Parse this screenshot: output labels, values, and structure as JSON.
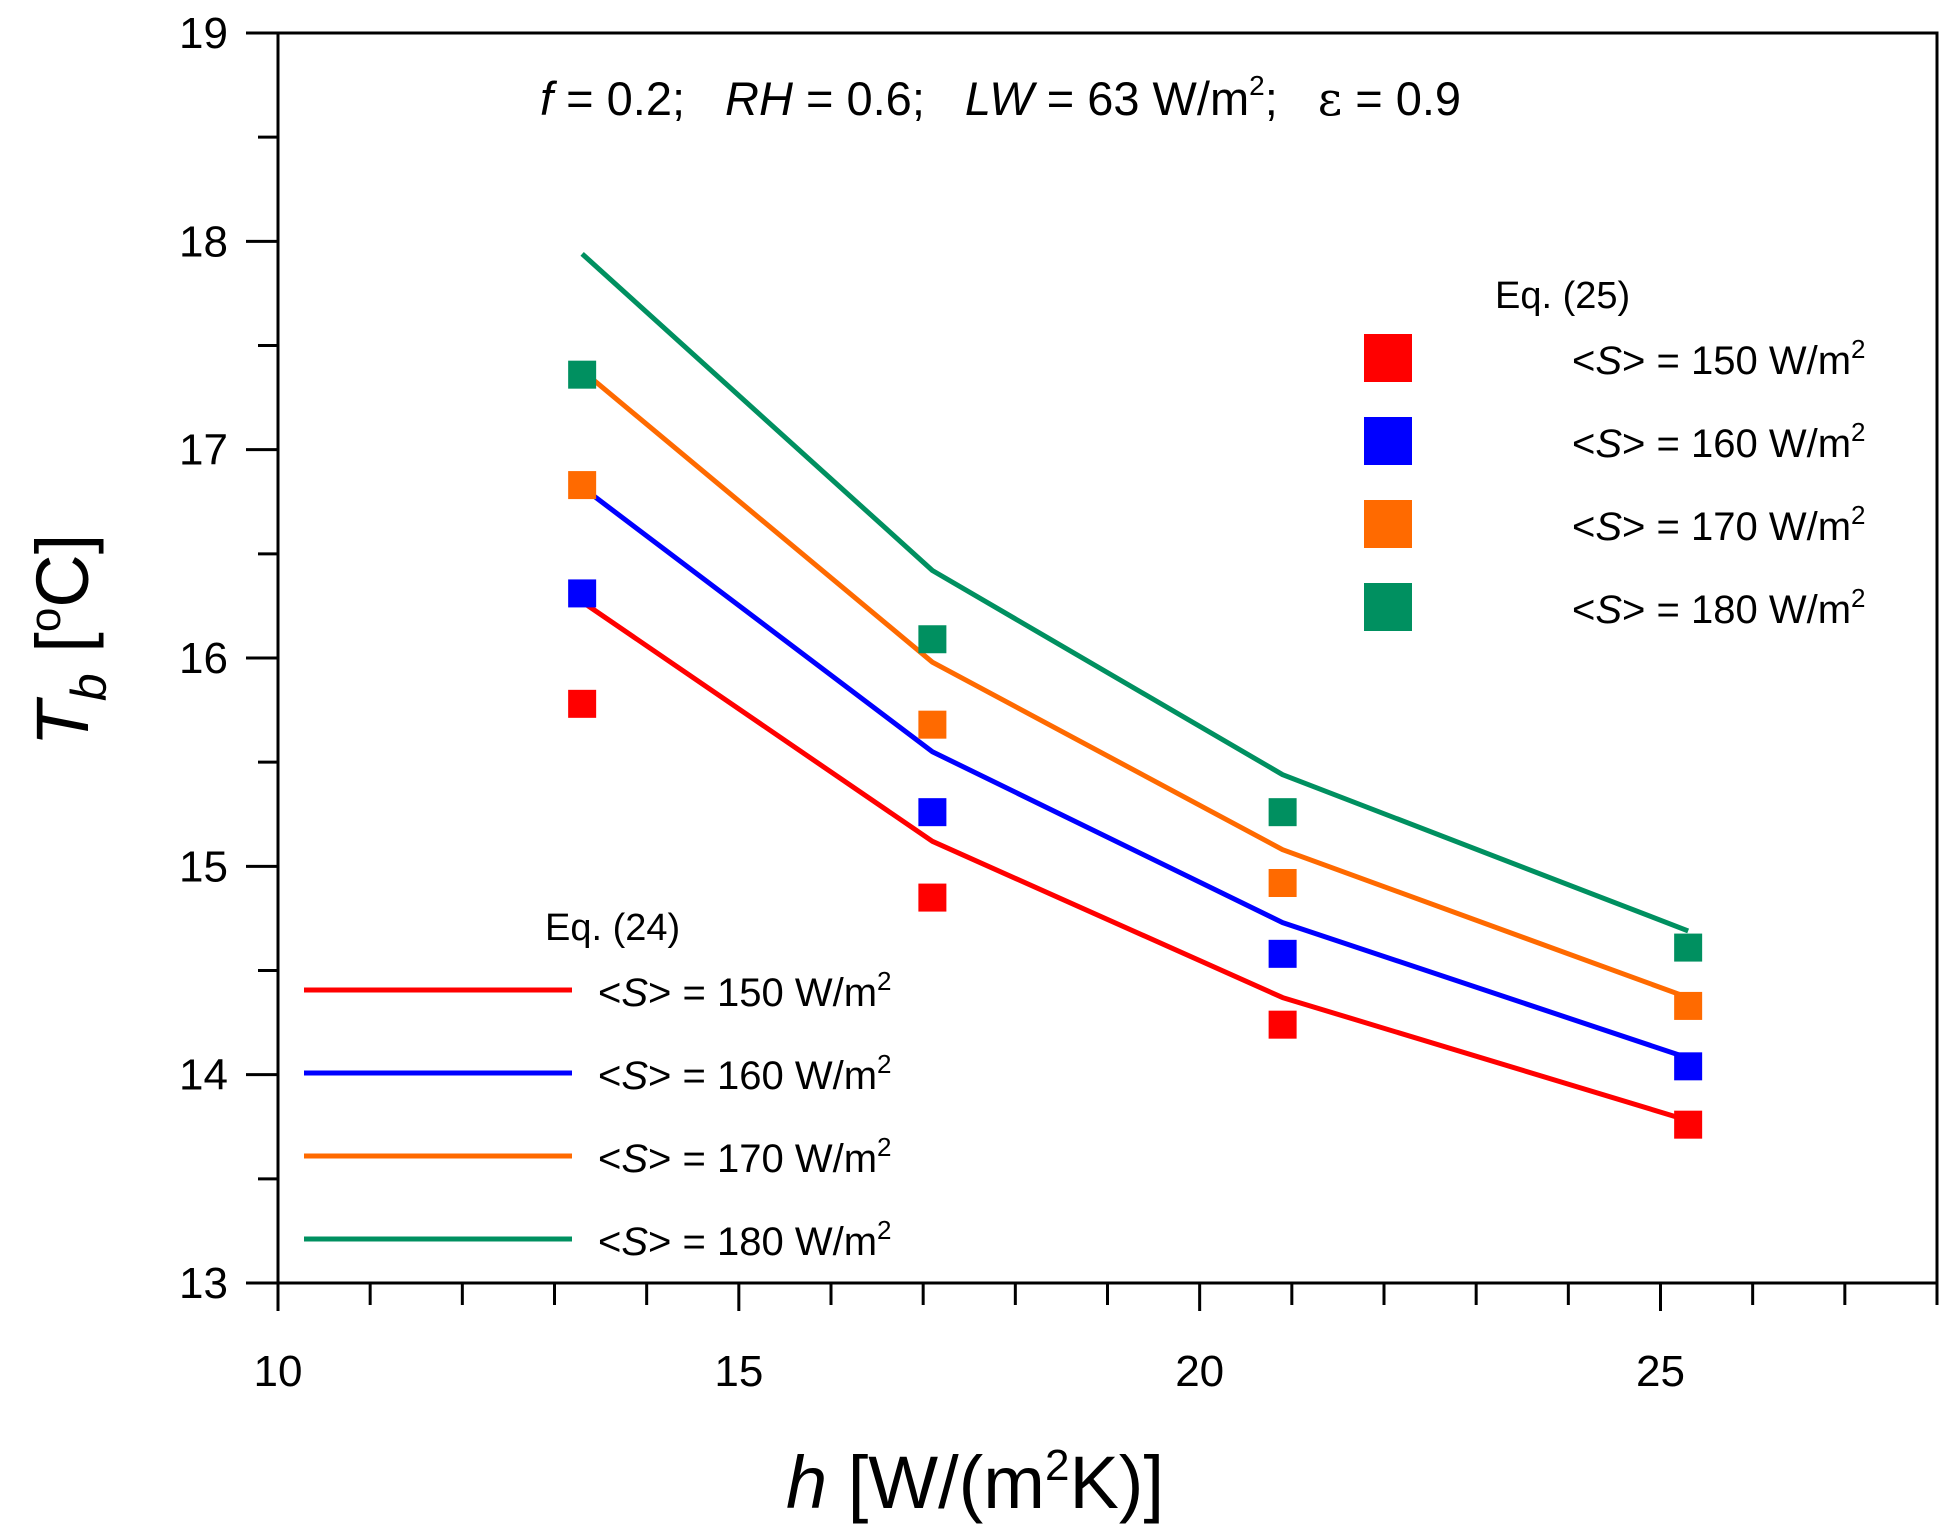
{
  "chart_data": {
    "type": "line",
    "annotation": {
      "f_symbol": "f",
      "f_value": " = 0.2;",
      "rh_symbol": "RH",
      "rh_value": " = 0.6;",
      "lw_symbol": "LW",
      "lw_value": " = 63 W/m",
      "lw_sup": "2",
      "lw_end": ";",
      "eps_symbol": "ε",
      "eps_value": " = 0.9"
    },
    "xlabel": {
      "symbol": "h",
      "unit_pre": " [W/(m",
      "unit_sup": "2",
      "unit_post": "K)]"
    },
    "ylabel": {
      "symbol": "T",
      "sub": "b",
      "unit_pre": " [",
      "unit_sup": "o",
      "unit_post": "C]"
    },
    "xlim": [
      10,
      28
    ],
    "ylim": [
      13,
      19
    ],
    "xticks": [
      10,
      15,
      20,
      25
    ],
    "yticks": [
      13,
      14,
      15,
      16,
      17,
      18,
      19
    ],
    "x": [
      13.3,
      17.1,
      20.9,
      25.3
    ],
    "lines_legend_title": "Eq. (24)",
    "markers_legend_title": "Eq. (25)",
    "series": [
      {
        "name": "<S> = 150 W/m2",
        "label_pre": "<",
        "label_sym": "S",
        "label_mid": "> = 150 W/m",
        "label_sup": "2",
        "color": "#ff0000",
        "line": [
          16.27,
          15.12,
          14.37,
          13.78
        ],
        "markers": [
          15.78,
          14.85,
          14.24,
          13.76
        ]
      },
      {
        "name": "<S> = 160 W/m2",
        "label_pre": "<",
        "label_sym": "S",
        "label_mid": "> = 160 W/m",
        "label_sup": "2",
        "color": "#0000ff",
        "line": [
          16.82,
          15.55,
          14.73,
          14.08
        ],
        "markers": [
          16.31,
          15.26,
          14.58,
          14.04
        ]
      },
      {
        "name": "<S> = 170 W/m2",
        "label_pre": "<",
        "label_sym": "S",
        "label_mid": "> = 170 W/m",
        "label_sup": "2",
        "color": "#ff6a00",
        "line": [
          17.38,
          15.98,
          15.08,
          14.37
        ],
        "markers": [
          16.83,
          15.68,
          14.92,
          14.33
        ]
      },
      {
        "name": "<S> = 180 W/m2",
        "label_pre": "<",
        "label_sym": "S",
        "label_mid": "> = 180 W/m",
        "label_sup": "2",
        "color": "#009060",
        "line": [
          17.94,
          16.42,
          15.44,
          14.69
        ],
        "markers": [
          17.36,
          16.09,
          15.26,
          14.61
        ]
      }
    ]
  }
}
